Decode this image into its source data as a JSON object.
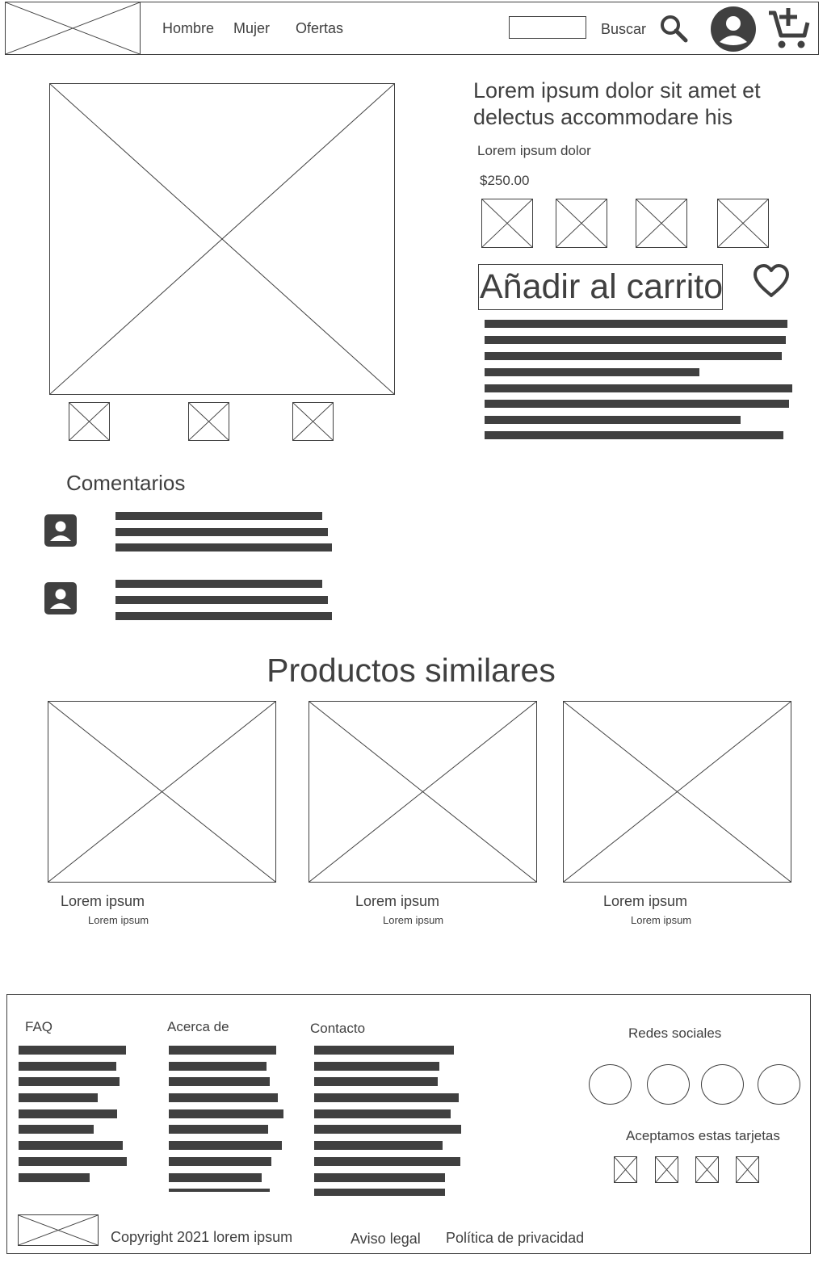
{
  "header": {
    "nav": [
      "Hombre",
      "Mujer",
      "Ofertas"
    ],
    "search_label": "Buscar",
    "search_value": ""
  },
  "product": {
    "title_line1": "Lorem ipsum dolor sit amet et",
    "title_line2": "delectus accommodare his",
    "subtitle": "Lorem ipsum dolor",
    "price": "$250.00",
    "add_to_cart": "Añadir al carrito"
  },
  "comments": {
    "title": "Comentarios"
  },
  "similar": {
    "title": "Productos similares",
    "items": [
      {
        "name": "Lorem ipsum",
        "sub": "Lorem ipsum"
      },
      {
        "name": "Lorem ipsum",
        "sub": "Lorem ipsum"
      },
      {
        "name": "Lorem ipsum",
        "sub": "Lorem ipsum"
      }
    ]
  },
  "footer": {
    "faq": "FAQ",
    "about": "Acerca de",
    "contact": "Contacto",
    "social": "Redes sociales",
    "cards": "Aceptamos estas tarjetas",
    "copyright": "Copyright 2021 lorem ipsum",
    "legal": "Aviso legal",
    "privacy": "Política de privacidad"
  },
  "colors": {
    "ink": "#404040",
    "background": "#ffffff"
  },
  "icons": [
    "search-icon",
    "user-icon",
    "cart-add-icon",
    "heart-icon",
    "account-box-icon"
  ]
}
